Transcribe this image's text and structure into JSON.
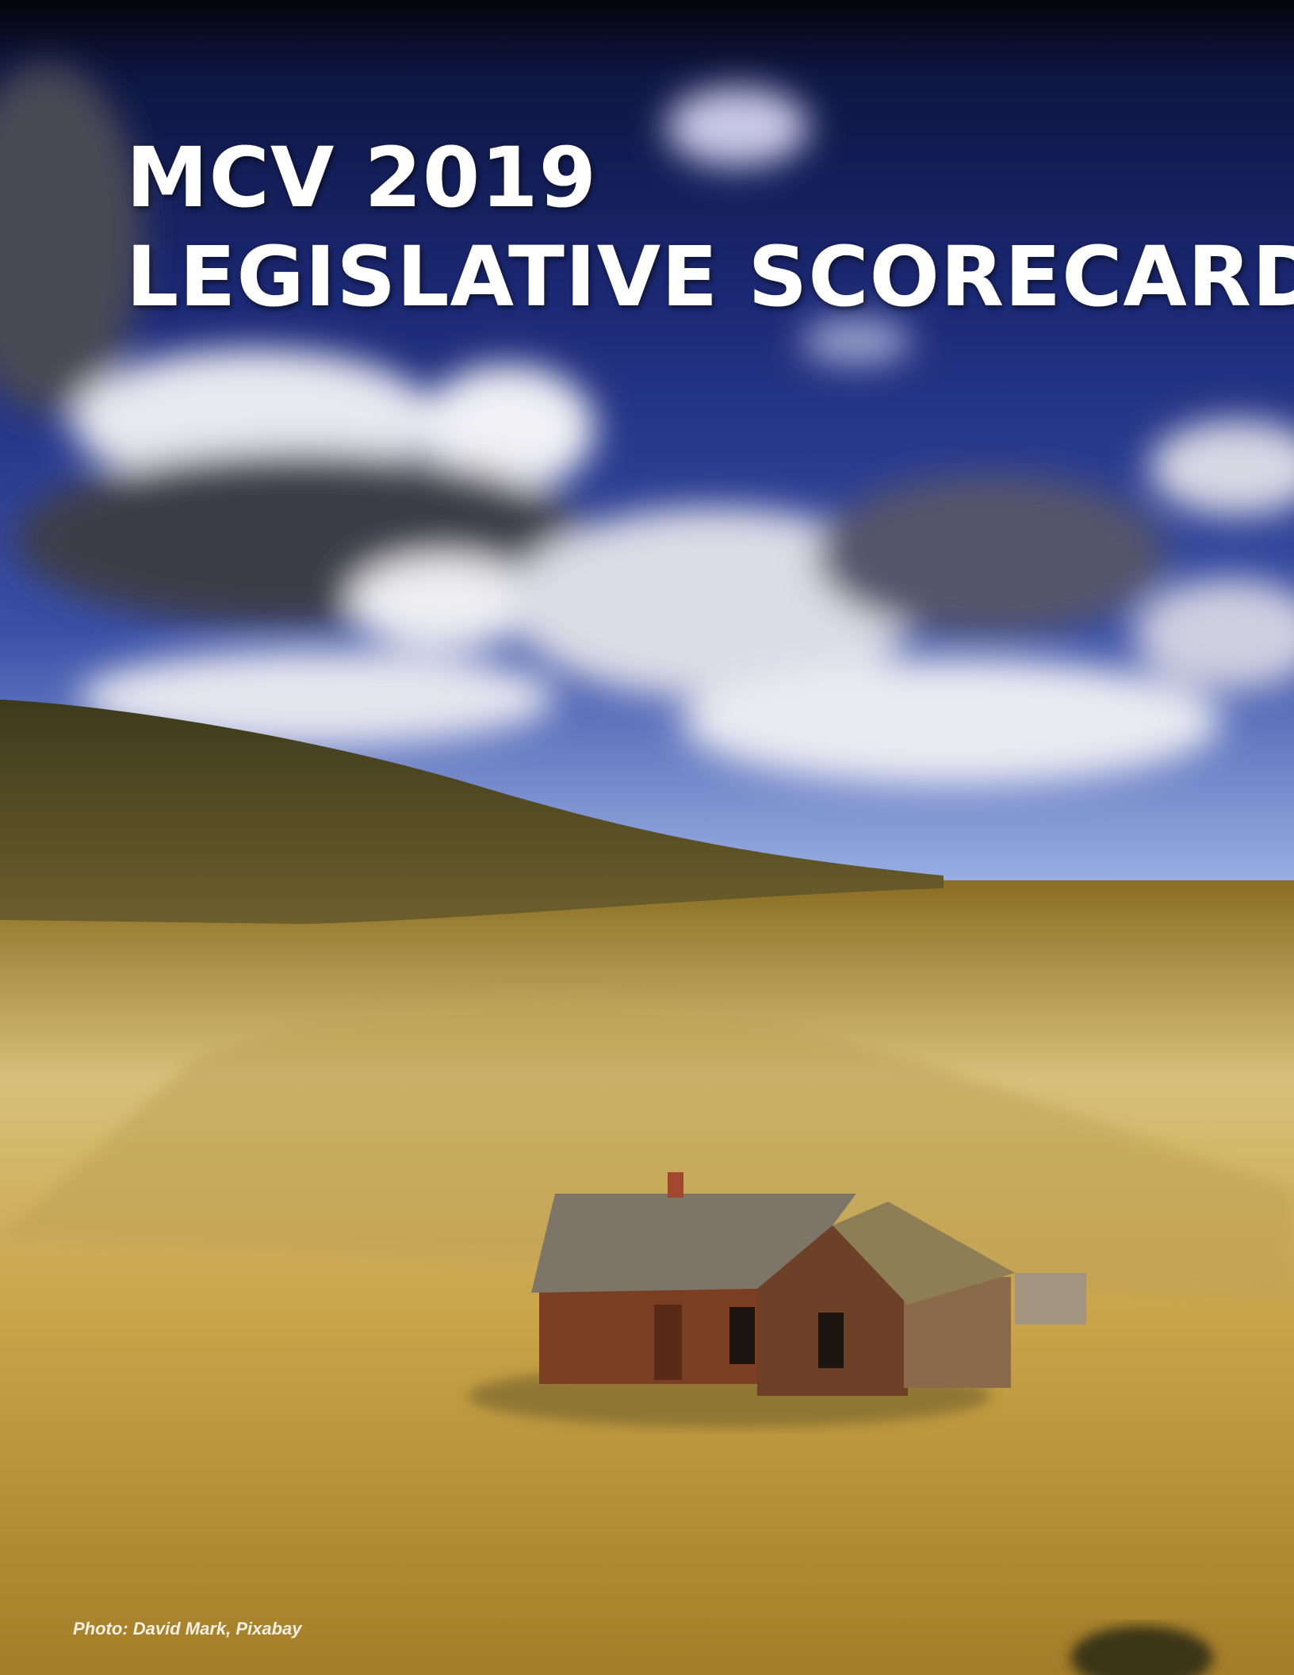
{
  "cover": {
    "title_line1": "MCV 2019",
    "title_line2": "LEGISLATIVE SCORECARD",
    "photo_credit": "Photo: David Mark, Pixabay"
  }
}
